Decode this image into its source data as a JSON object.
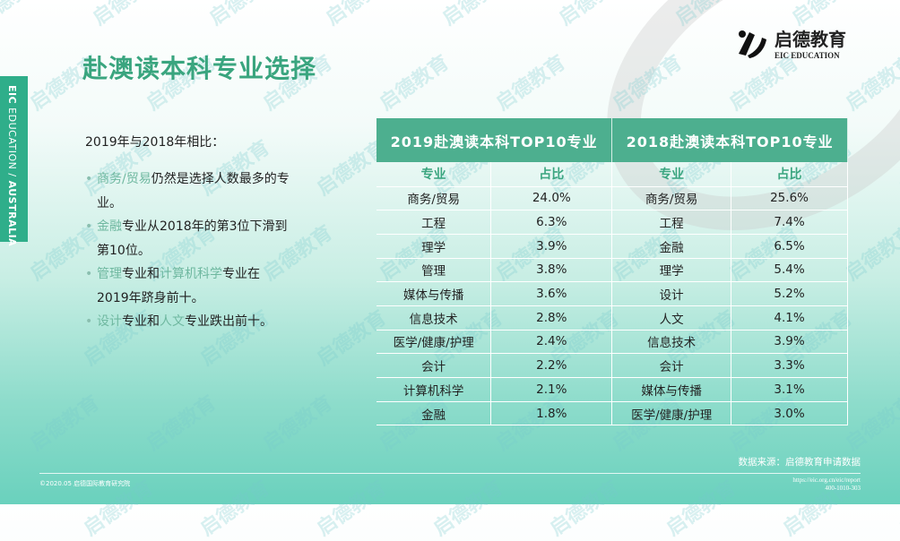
{
  "side_strip": {
    "bold": "EIC",
    "text": " EDUCATION / ",
    "country": "AUSTRALIA"
  },
  "title": "赴澳读本科专业选择",
  "logo": {
    "cn": "启德教育",
    "en": "EIC EDUCATION",
    "watermark": "启德教育 EIC EDUCATION"
  },
  "intro": "2019年与2018年相比：",
  "bullets": [
    {
      "hl1": "商务/贸易",
      "t1": "仍然是选择人数最多的专业。"
    },
    {
      "hl1": "金融",
      "t1": "专业从2018年的第3位下滑到第10位。"
    },
    {
      "hl1": "管理",
      "t1": "专业和",
      "hl2": "计算机科学",
      "t2": "专业在2019年跻身前十。"
    },
    {
      "hl1": "设计",
      "t1": "专业和",
      "hl2": "人文",
      "t2": "专业跌出前十。"
    }
  ],
  "table": {
    "title_2019": "2019赴澳读本科TOP10专业",
    "title_2018": "2018赴澳读本科TOP10专业",
    "col_major": "专业",
    "col_share": "占比",
    "rows": [
      [
        "商务/贸易",
        "24.0%",
        "商务/贸易",
        "25.6%"
      ],
      [
        "工程",
        "6.3%",
        "工程",
        "7.4%"
      ],
      [
        "理学",
        "3.9%",
        "金融",
        "6.5%"
      ],
      [
        "管理",
        "3.8%",
        "理学",
        "5.4%"
      ],
      [
        "媒体与传播",
        "3.6%",
        "设计",
        "5.2%"
      ],
      [
        "信息技术",
        "2.8%",
        "人文",
        "4.1%"
      ],
      [
        "医学/健康/护理",
        "2.4%",
        "信息技术",
        "3.9%"
      ],
      [
        "会计",
        "2.2%",
        "会计",
        "3.3%"
      ],
      [
        "计算机科学",
        "2.1%",
        "媒体与传播",
        "3.1%"
      ],
      [
        "金融",
        "1.8%",
        "医学/健康/护理",
        "3.0%"
      ]
    ]
  },
  "footer": {
    "source": "数据来源：启德教育申请数据",
    "copyright": "©2020.05 启德国际教育研究院",
    "url": "https://eic.org.cn/eic/report",
    "phone": "400-1010-303"
  },
  "colors": {
    "accent": "#4daf8f",
    "title": "#3aa57f",
    "strip": "#2fae8a"
  }
}
